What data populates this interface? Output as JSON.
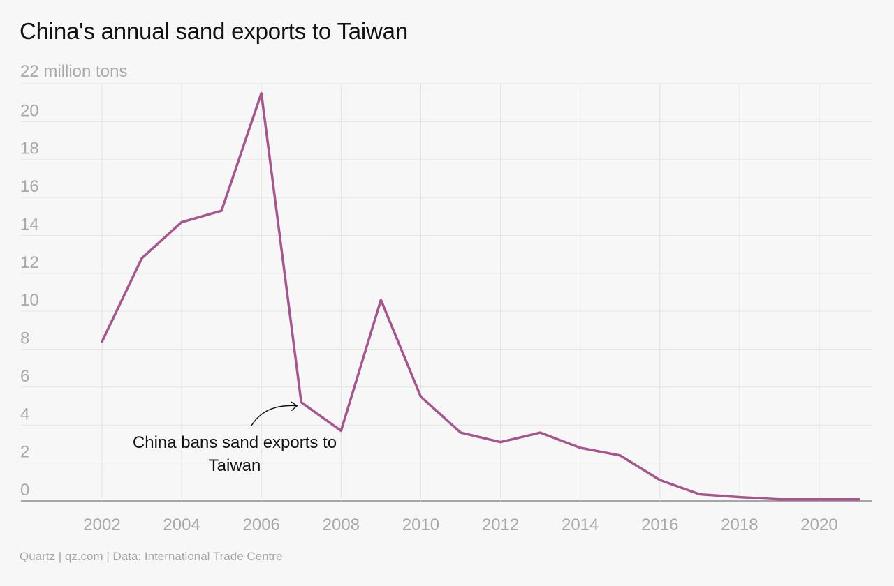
{
  "chart_data": {
    "type": "line",
    "title": "China's annual sand exports to Taiwan",
    "y_top_label": "22 million tons",
    "xlabel": "",
    "ylabel": "",
    "x_ticks": [
      2002,
      2004,
      2006,
      2008,
      2010,
      2012,
      2014,
      2016,
      2018,
      2020
    ],
    "y_ticks": [
      0,
      2,
      4,
      6,
      8,
      10,
      12,
      14,
      16,
      18,
      20
    ],
    "xlim": [
      2001,
      2021.4
    ],
    "ylim": [
      0,
      22
    ],
    "grid": true,
    "series": [
      {
        "color": "#a6558e",
        "x": [
          2002,
          2003,
          2004,
          2005,
          2006,
          2007,
          2008,
          2009,
          2010,
          2011,
          2012,
          2013,
          2014,
          2015,
          2016,
          2017,
          2018,
          2019,
          2020,
          2021
        ],
        "y": [
          8.4,
          12.8,
          14.7,
          15.3,
          21.5,
          5.2,
          3.7,
          10.6,
          5.5,
          3.6,
          3.1,
          3.6,
          2.8,
          2.4,
          1.1,
          0.35,
          0.2,
          0.08,
          0.08,
          0.08
        ]
      }
    ],
    "annotations": [
      {
        "lines": [
          "China bans sand exports to",
          "Taiwan"
        ],
        "x": 2007,
        "y": 5.2
      }
    ]
  },
  "footer": "Quartz | qz.com | Data: International Trade Centre"
}
